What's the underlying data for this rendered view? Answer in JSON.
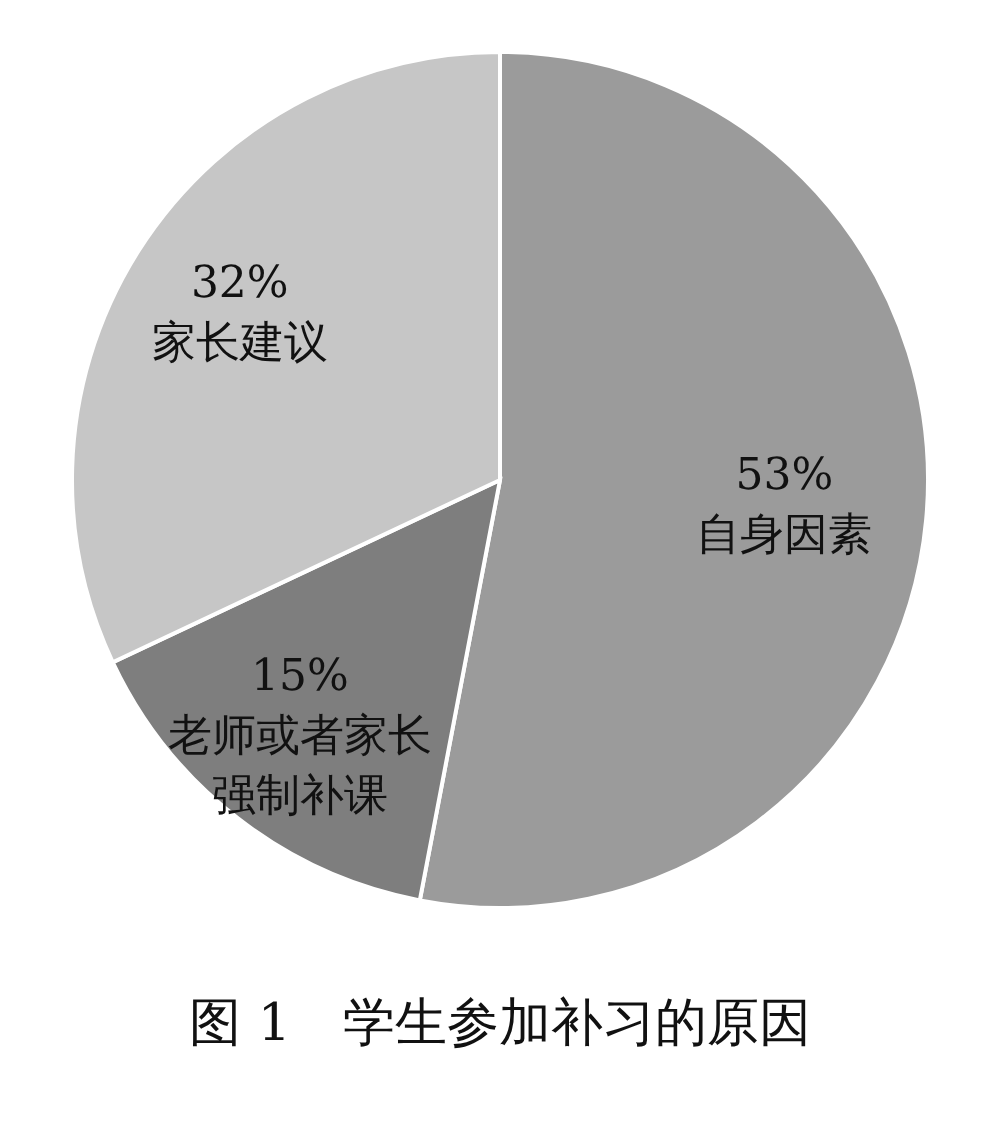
{
  "chart_data": {
    "type": "pie",
    "title": "图 1　学生参加补习的原因",
    "categories": [
      "自身因素",
      "老师或者家长强制补课",
      "家长建议"
    ],
    "values": [
      53,
      15,
      32
    ],
    "value_labels": [
      "53%",
      "15%",
      "32%"
    ],
    "colors": [
      "#9b9b9b",
      "#7e7e7e",
      "#c6c6c6"
    ]
  }
}
